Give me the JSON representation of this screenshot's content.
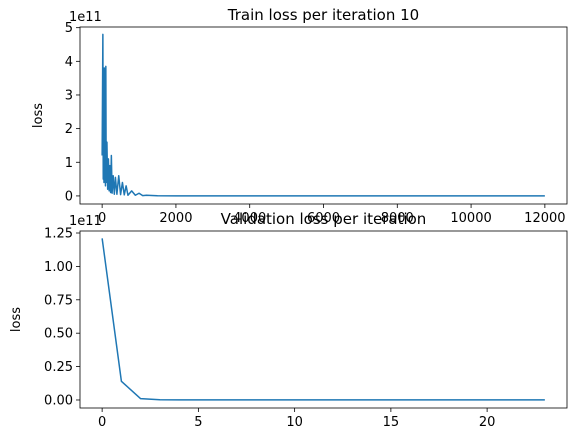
{
  "chart_data": [
    {
      "type": "line",
      "title": "Train loss per iteration 10",
      "xlabel": "",
      "ylabel": "loss",
      "y_offset_label": "1e11",
      "xlim": [
        -600,
        12600
      ],
      "ylim": [
        -0.24,
        5.02
      ],
      "x_ticks": [
        0,
        2000,
        4000,
        6000,
        8000,
        10000,
        12000
      ],
      "x_tick_labels": [
        "0",
        "2000",
        "4000",
        "6000",
        "8000",
        "10000",
        "12000"
      ],
      "y_ticks": [
        0,
        1,
        2,
        3,
        4,
        5
      ],
      "y_tick_labels": [
        "0",
        "1",
        "2",
        "3",
        "4",
        "5"
      ],
      "y_tick_scale": 100000000000.0,
      "grid": false,
      "color": "#1f77b4",
      "series": [
        {
          "x": [
            0,
            20,
            30,
            40,
            50,
            60,
            70,
            80,
            90,
            100,
            110,
            130,
            150,
            170,
            190,
            210,
            230,
            250,
            270,
            300,
            330,
            360,
            400,
            450,
            500,
            550,
            600,
            650,
            700,
            800,
            900,
            1000,
            1100,
            1200,
            1500,
            2000,
            4000,
            6000,
            8000,
            10000,
            12000
          ],
          "y": [
            120000000000.0,
            480000000000.0,
            50000000000.0,
            190000000000.0,
            40000000000.0,
            380000000000.0,
            80000000000.0,
            240000000000.0,
            30000000000.0,
            385000000000.0,
            40000000000.0,
            160000000000.0,
            20000000000.0,
            110000000000.0,
            15000000000.0,
            90000000000.0,
            10000000000.0,
            120000000000.0,
            8000000000.0,
            60000000000.0,
            5000000000.0,
            55000000000.0,
            5000000000.0,
            60000000000.0,
            4000000000.0,
            40000000000.0,
            3000000000.0,
            30000000000.0,
            2000000000.0,
            15000000000.0,
            2000000000.0,
            8000000000.0,
            1000000000.0,
            2000000000.0,
            500000000.0,
            300000000.0,
            200000000.0,
            200000000.0,
            200000000.0,
            200000000.0,
            200000000.0
          ]
        }
      ]
    },
    {
      "type": "line",
      "title": "Validation loss per iteration",
      "xlabel": "",
      "ylabel": "loss",
      "y_offset_label": "1e11",
      "xlim": [
        -1.15,
        24.15
      ],
      "ylim": [
        -0.06,
        1.265
      ],
      "x_ticks": [
        0,
        5,
        10,
        15,
        20
      ],
      "x_tick_labels": [
        "0",
        "5",
        "10",
        "15",
        "20"
      ],
      "y_ticks": [
        0,
        0.25,
        0.5,
        0.75,
        1.0,
        1.25
      ],
      "y_tick_labels": [
        "0.00",
        "0.25",
        "0.50",
        "0.75",
        "1.00",
        "1.25"
      ],
      "y_tick_scale": 100000000000.0,
      "grid": false,
      "color": "#1f77b4",
      "series": [
        {
          "x": [
            0,
            1,
            2,
            3,
            4,
            5,
            6,
            7,
            8,
            9,
            10,
            11,
            12,
            13,
            14,
            15,
            16,
            17,
            18,
            19,
            20,
            21,
            22,
            23
          ],
          "y": [
            121000000000.0,
            14000000000.0,
            1000000000.0,
            200000000.0,
            100000000.0,
            100000000.0,
            100000000.0,
            100000000.0,
            100000000.0,
            100000000.0,
            100000000.0,
            100000000.0,
            100000000.0,
            100000000.0,
            100000000.0,
            100000000.0,
            100000000.0,
            100000000.0,
            100000000.0,
            100000000.0,
            100000000.0,
            100000000.0,
            100000000.0,
            100000000.0
          ]
        }
      ]
    }
  ]
}
